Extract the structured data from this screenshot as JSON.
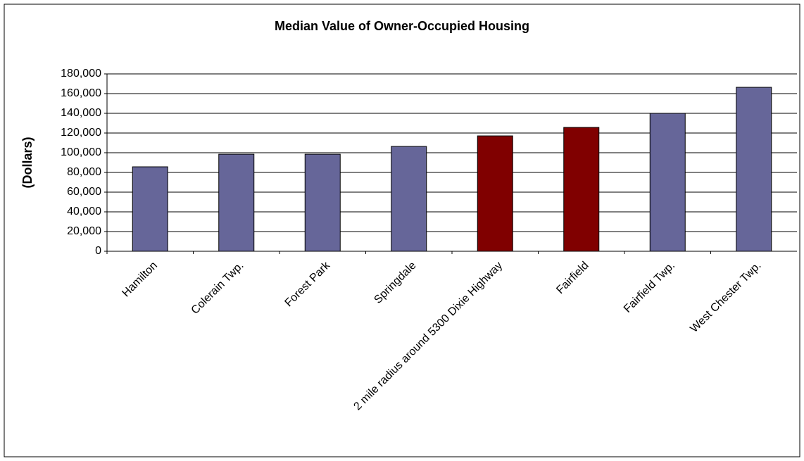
{
  "chart_data": {
    "type": "bar",
    "title": "Median Value of Owner-Occupied Housing",
    "y_label": "(Dollars)",
    "categories": [
      "Hamilton",
      "Colerain Twp.",
      "Forest Park",
      "Springdale",
      "2 mile radius around 5300 Dixie Highway",
      "Fairfield",
      "Fairfield Twp.",
      "West Chester Twp."
    ],
    "values": [
      85700,
      98500,
      98500,
      106400,
      117100,
      125700,
      140000,
      166400
    ],
    "colors": [
      "#666699",
      "#666699",
      "#666699",
      "#666699",
      "#800000",
      "#800000",
      "#666699",
      "#666699"
    ],
    "ylim": [
      0,
      180000
    ],
    "yticks": [
      0,
      {
        "value": 20000,
        "label": "20,000"
      },
      {
        "value": 40000,
        "label": "40,000"
      },
      {
        "value": 60000,
        "label": "60,000"
      },
      {
        "value": 80000,
        "label": "80,000"
      },
      {
        "value": 100000,
        "label": "100,000"
      },
      {
        "value": 120000,
        "label": "120,000"
      },
      {
        "value": 140000,
        "label": "140,000"
      },
      {
        "value": 160000,
        "label": "160,000"
      },
      {
        "value": 180000,
        "label": "180,000"
      }
    ],
    "grid": true
  }
}
